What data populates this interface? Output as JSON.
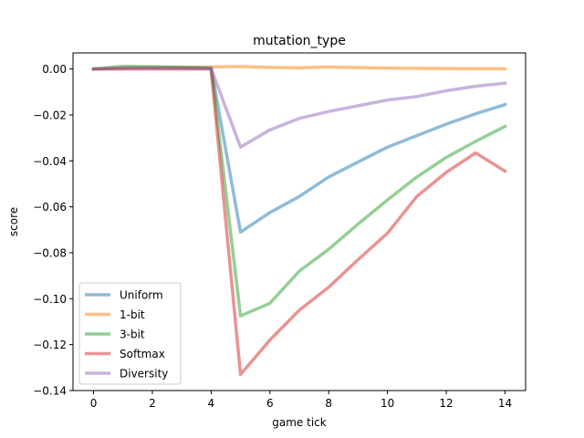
{
  "chart_data": {
    "type": "line",
    "title": "mutation_type",
    "xlabel": "game tick",
    "ylabel": "score",
    "xlim": [
      -0.7,
      14.7
    ],
    "ylim": [
      -0.14,
      0.007
    ],
    "xticks": [
      0,
      2,
      4,
      6,
      8,
      10,
      12,
      14
    ],
    "xtick_labels": [
      "0",
      "2",
      "4",
      "6",
      "8",
      "10",
      "12",
      "14"
    ],
    "yticks": [
      0.0,
      -0.02,
      -0.04,
      -0.06,
      -0.08,
      -0.1,
      -0.12,
      -0.14
    ],
    "ytick_labels": [
      "0.00",
      "−0.02",
      "−0.04",
      "−0.06",
      "−0.08",
      "−0.10",
      "−0.12",
      "−0.14"
    ],
    "grid": false,
    "legend_position": "lower-left",
    "x": [
      0,
      1,
      2,
      3,
      4,
      5,
      6,
      7,
      8,
      9,
      10,
      11,
      12,
      13,
      14
    ],
    "series": [
      {
        "name": "Uniform",
        "color": "#1f77b4",
        "values": [
          0.0,
          0.0005,
          0.0007,
          0.0006,
          0.0004,
          -0.071,
          -0.0625,
          -0.0555,
          -0.047,
          -0.0405,
          -0.034,
          -0.029,
          -0.024,
          -0.0195,
          -0.0155
        ]
      },
      {
        "name": "1-bit",
        "color": "#ff7f0e",
        "values": [
          0.0,
          0.0004,
          0.0006,
          0.0007,
          0.0009,
          0.0011,
          0.0007,
          0.0005,
          0.0009,
          0.0006,
          0.0004,
          0.0003,
          0.0002,
          0.0001,
          0.0001
        ]
      },
      {
        "name": "3-bit",
        "color": "#2ca02c",
        "values": [
          0.0,
          0.0012,
          0.001,
          0.0008,
          0.0005,
          -0.1075,
          -0.102,
          -0.088,
          -0.0785,
          -0.0675,
          -0.057,
          -0.047,
          -0.0385,
          -0.0315,
          -0.025
        ]
      },
      {
        "name": "Softmax",
        "color": "#d62728",
        "values": [
          0.0,
          0.0,
          0.0,
          0.0,
          0.0,
          -0.133,
          -0.118,
          -0.105,
          -0.095,
          -0.083,
          -0.0715,
          -0.0555,
          -0.045,
          -0.0365,
          -0.0445
        ]
      },
      {
        "name": "Diversity",
        "color": "#9467bd",
        "values": [
          0.0,
          0.0003,
          0.0004,
          0.0003,
          0.0002,
          -0.034,
          -0.0265,
          -0.0215,
          -0.0185,
          -0.016,
          -0.0135,
          -0.012,
          -0.0095,
          -0.0075,
          -0.0062
        ]
      }
    ]
  }
}
